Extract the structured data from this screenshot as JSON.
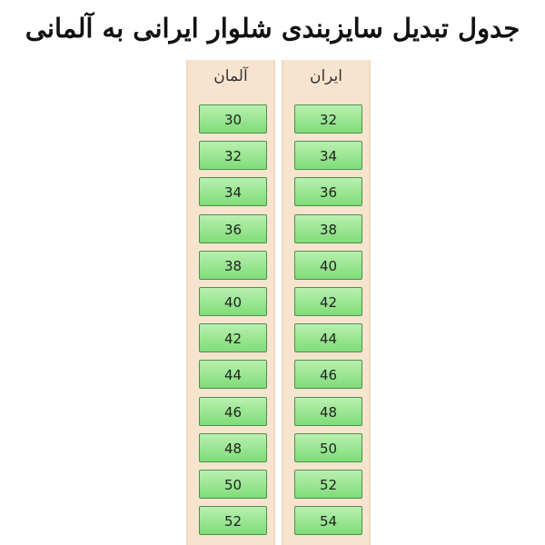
{
  "title": "جدول تبدیل سایزبندی شلوار ایرانی به آلمانی",
  "table": {
    "columns": [
      {
        "header": "ایران",
        "values": [
          32,
          34,
          36,
          38,
          40,
          42,
          44,
          46,
          48,
          50,
          52,
          54
        ]
      },
      {
        "header": "آلمان",
        "values": [
          30,
          32,
          34,
          36,
          38,
          40,
          42,
          44,
          46,
          48,
          50,
          52
        ]
      }
    ]
  }
}
